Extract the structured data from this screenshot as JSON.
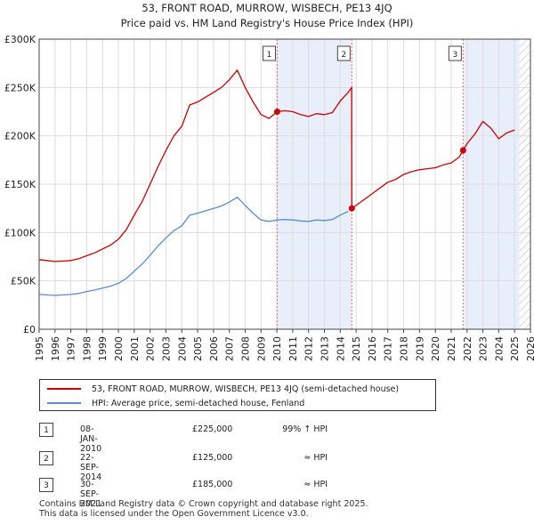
{
  "chart_data": {
    "type": "line",
    "title": "53, FRONT ROAD, MURROW, WISBECH, PE13 4JQ",
    "subtitle": "Price paid vs. HM Land Registry's House Price Index (HPI)",
    "xlabel": "",
    "ylabel": "",
    "xlim": [
      1995,
      2026
    ],
    "ylim": [
      0,
      300000
    ],
    "x_ticks": [
      "1995",
      "1996",
      "1997",
      "1998",
      "1999",
      "2000",
      "2001",
      "2002",
      "2003",
      "2004",
      "2005",
      "2006",
      "2007",
      "2008",
      "2009",
      "2010",
      "2011",
      "2012",
      "2013",
      "2014",
      "2015",
      "2016",
      "2017",
      "2018",
      "2019",
      "2020",
      "2021",
      "2022",
      "2023",
      "2024",
      "2025",
      "2026"
    ],
    "y_ticks": [
      {
        "value": 0,
        "label": "£0"
      },
      {
        "value": 50000,
        "label": "£50K"
      },
      {
        "value": 100000,
        "label": "£100K"
      },
      {
        "value": 150000,
        "label": "£150K"
      },
      {
        "value": 200000,
        "label": "£200K"
      },
      {
        "value": 250000,
        "label": "£250K"
      },
      {
        "value": 300000,
        "label": "£300K"
      }
    ],
    "grid": true,
    "shaded_ranges": [
      [
        2010.02,
        2014.73
      ],
      [
        2021.75,
        2025.3
      ]
    ],
    "future_hatch_from": 2025.3,
    "series": [
      {
        "name": "53, FRONT ROAD, MURROW, WISBECH, PE13 4JQ (semi-detached house)",
        "color": "#cc0000",
        "x": [
          1995.0,
          1995.5,
          1996.0,
          1996.5,
          1997.0,
          1997.5,
          1998.0,
          1998.5,
          1999.0,
          1999.5,
          2000.0,
          2000.5,
          2001.0,
          2001.5,
          2002.0,
          2002.5,
          2003.0,
          2003.5,
          2004.0,
          2004.5,
          2005.0,
          2005.5,
          2006.0,
          2006.5,
          2007.0,
          2007.5,
          2008.0,
          2008.5,
          2009.0,
          2009.5,
          2010.02,
          2010.5,
          2011.0,
          2011.5,
          2012.0,
          2012.5,
          2013.0,
          2013.5,
          2014.0,
          2014.5,
          2014.72,
          2014.73,
          2015.0,
          2015.5,
          2016.0,
          2016.5,
          2017.0,
          2017.5,
          2018.0,
          2018.5,
          2019.0,
          2019.5,
          2020.0,
          2020.5,
          2021.0,
          2021.5,
          2021.75,
          2022.0,
          2022.5,
          2023.0,
          2023.5,
          2024.0,
          2024.5,
          2025.0
        ],
        "y": [
          72000,
          71000,
          70000,
          70500,
          71000,
          73000,
          76000,
          79000,
          83000,
          87000,
          93000,
          103000,
          118000,
          132000,
          150000,
          168000,
          185000,
          200000,
          210000,
          232000,
          235000,
          240000,
          245000,
          250000,
          258000,
          268000,
          250000,
          235000,
          222000,
          218000,
          225000,
          226000,
          225000,
          222000,
          220000,
          223000,
          222000,
          224000,
          236000,
          245000,
          250000,
          125000,
          128000,
          134000,
          140000,
          146000,
          152000,
          155000,
          160000,
          163000,
          165000,
          166000,
          167000,
          170000,
          172000,
          178000,
          185000,
          192000,
          202000,
          215000,
          208000,
          197000,
          203000,
          206000
        ],
        "values_note": "price paid adjusted by HPI"
      },
      {
        "name": "HPI: Average price, semi-detached house, Fenland",
        "color": "#5b8ec6",
        "x": [
          1995.0,
          1995.5,
          1996.0,
          1996.5,
          1997.0,
          1997.5,
          1998.0,
          1998.5,
          1999.0,
          1999.5,
          2000.0,
          2000.5,
          2001.0,
          2001.5,
          2002.0,
          2002.5,
          2003.0,
          2003.5,
          2004.0,
          2004.5,
          2005.0,
          2005.5,
          2006.0,
          2006.5,
          2007.0,
          2007.5,
          2008.0,
          2008.5,
          2009.0,
          2009.5,
          2010.0,
          2010.5,
          2011.0,
          2011.5,
          2012.0,
          2012.5,
          2013.0,
          2013.5,
          2014.0,
          2014.5
        ],
        "y": [
          36000,
          35500,
          35000,
          35500,
          36000,
          37000,
          39000,
          40500,
          42500,
          44500,
          47500,
          52500,
          60000,
          67500,
          76500,
          86000,
          94500,
          102000,
          107000,
          118000,
          120000,
          122500,
          125000,
          127500,
          131500,
          136500,
          128000,
          120000,
          113000,
          111500,
          113000,
          113500,
          113000,
          112000,
          111500,
          113000,
          112500,
          113500,
          118000,
          122000
        ]
      }
    ],
    "transactions": [
      {
        "num": "1",
        "date": "08-JAN-2010",
        "year": 2010.02,
        "price": 225000,
        "price_label": "£225,000",
        "hpi": "99% ↑ HPI"
      },
      {
        "num": "2",
        "date": "22-SEP-2014",
        "year": 2014.73,
        "price": 125000,
        "price_label": "£125,000",
        "hpi": "≈ HPI"
      },
      {
        "num": "3",
        "date": "30-SEP-2021",
        "year": 2021.75,
        "price": 185000,
        "price_label": "£185,000",
        "hpi": "≈ HPI"
      }
    ]
  },
  "legend": {
    "property": "53, FRONT ROAD, MURROW, WISBECH, PE13 4JQ (semi-detached house)",
    "hpi": "HPI: Average price, semi-detached house, Fenland"
  },
  "footer": {
    "line1": "Contains HM Land Registry data © Crown copyright and database right 2025.",
    "line2": "This data is licensed under the Open Government Licence v3.0."
  }
}
